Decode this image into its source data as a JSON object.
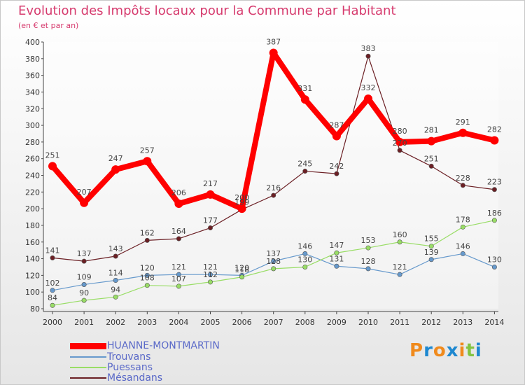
{
  "chart_data": {
    "type": "line",
    "title": "Evolution des Impôts locaux pour la Commune par Habitant",
    "subtitle": "(en € et par an)",
    "xlabel": "",
    "ylabel": "",
    "x": [
      "2000",
      "2001",
      "2002",
      "2003",
      "2004",
      "2005",
      "2006",
      "2007",
      "2008",
      "2009",
      "2010",
      "2011",
      "2012",
      "2013",
      "2014"
    ],
    "ylim": [
      80,
      400
    ],
    "yticks": [
      80,
      100,
      120,
      140,
      160,
      180,
      200,
      220,
      240,
      260,
      280,
      300,
      320,
      340,
      360,
      380,
      400
    ],
    "grid": false,
    "legend_position": "bottom-left",
    "series": [
      {
        "name": "HUANNE-MONTMARTIN",
        "color": "#ff0000",
        "values": [
          251,
          207,
          247,
          257,
          206,
          217,
          200,
          387,
          331,
          287,
          332,
          280,
          281,
          291,
          282
        ]
      },
      {
        "name": "Trouvans",
        "color": "#6699cc",
        "values": [
          102,
          109,
          114,
          120,
          121,
          121,
          120,
          137,
          146,
          131,
          128,
          121,
          139,
          146,
          130
        ]
      },
      {
        "name": "Puessans",
        "color": "#99dd66",
        "values": [
          84,
          90,
          94,
          108,
          107,
          112,
          118,
          128,
          130,
          147,
          153,
          160,
          155,
          178,
          186
        ]
      },
      {
        "name": "Mésandans",
        "color": "#6b1f24",
        "values": [
          141,
          137,
          143,
          162,
          164,
          177,
          199,
          216,
          245,
          242,
          383,
          270,
          251,
          228,
          223
        ]
      }
    ]
  },
  "logo": {
    "letters": [
      "P",
      "r",
      "o",
      "x",
      "i",
      "t",
      "i"
    ],
    "colors": [
      "#f08a1c",
      "#1e88d0",
      "#f08a1c",
      "#1e88d0",
      "#f08a1c",
      "#82c341",
      "#1e88d0"
    ]
  }
}
